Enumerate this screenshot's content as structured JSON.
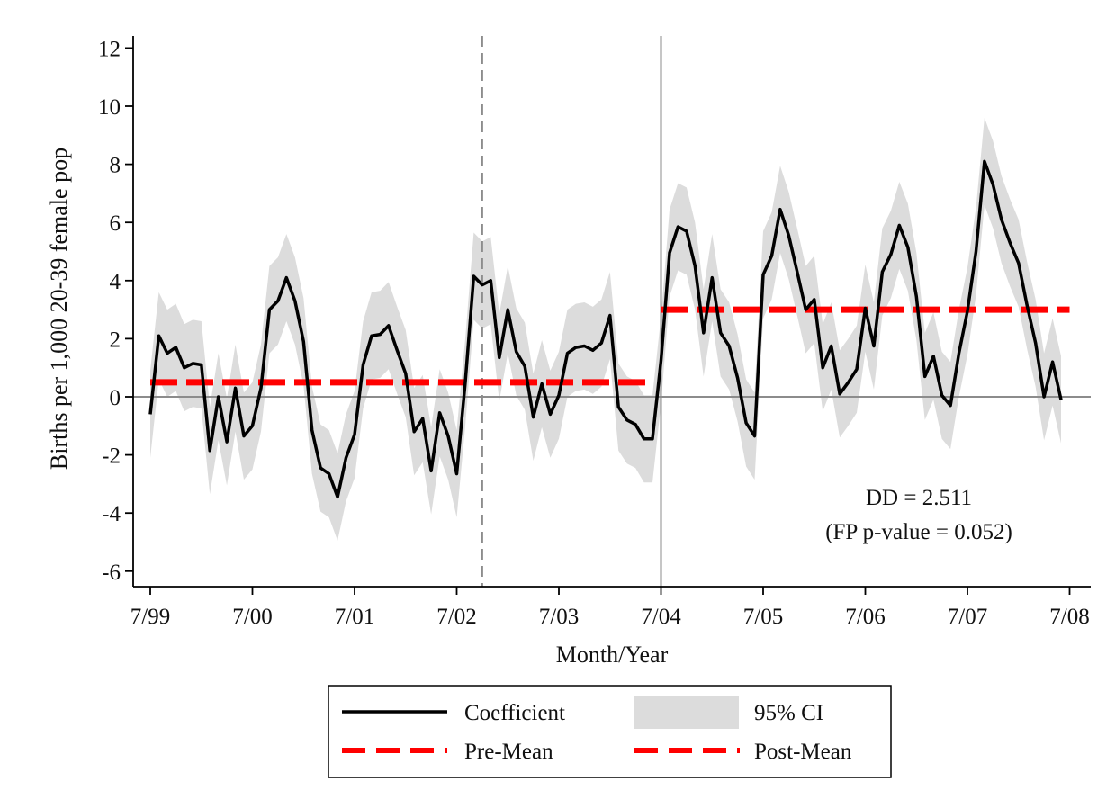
{
  "chart_data": {
    "type": "line",
    "title": "",
    "xlabel": "Month/Year",
    "ylabel": "Births per 1,000 20-39 female pop",
    "ylim": [
      -6.5,
      12.5
    ],
    "yticks": [
      -6,
      -4,
      -2,
      0,
      2,
      4,
      6,
      8,
      10,
      12
    ],
    "xlim": [
      0,
      109
    ],
    "xticks": [
      {
        "pos": 0,
        "label": "7/99"
      },
      {
        "pos": 12,
        "label": "7/00"
      },
      {
        "pos": 24,
        "label": "7/01"
      },
      {
        "pos": 36,
        "label": "7/02"
      },
      {
        "pos": 48,
        "label": "7/03"
      },
      {
        "pos": 60,
        "label": "7/04"
      },
      {
        "pos": 72,
        "label": "7/05"
      },
      {
        "pos": 84,
        "label": "7/06"
      },
      {
        "pos": 96,
        "label": "7/07"
      },
      {
        "pos": 108,
        "label": "7/08"
      }
    ],
    "reference_lines": {
      "zero_line_y": 0,
      "dashed_vertical_x": 39,
      "solid_vertical_x": 60
    },
    "coefficient": [
      -0.6,
      2.1,
      1.5,
      1.7,
      1.0,
      1.15,
      1.1,
      -1.85,
      0.0,
      -1.55,
      0.3,
      -1.35,
      -1.0,
      0.3,
      3.0,
      3.3,
      4.1,
      3.3,
      1.9,
      -1.15,
      -2.45,
      -2.65,
      -3.45,
      -2.1,
      -1.3,
      1.1,
      2.1,
      2.15,
      2.45,
      1.6,
      0.8,
      -1.2,
      -0.75,
      -2.55,
      -0.55,
      -1.35,
      -2.65,
      0.5,
      4.15,
      3.85,
      4.0,
      1.35,
      3.0,
      1.55,
      1.05,
      -0.7,
      0.45,
      -0.6,
      0.05,
      1.5,
      1.7,
      1.75,
      1.6,
      1.85,
      2.8,
      -0.35,
      -0.8,
      -0.95,
      -1.45,
      -1.45,
      1.25,
      4.95,
      5.85,
      5.7,
      4.5,
      2.2,
      4.1,
      2.2,
      1.75,
      0.65,
      -0.9,
      -1.35,
      4.2,
      4.85,
      6.45,
      5.55,
      4.3,
      3.0,
      3.35,
      1.0,
      1.75,
      0.1,
      0.5,
      0.95,
      3.05,
      1.75,
      4.3,
      4.9,
      5.9,
      5.15,
      3.45,
      0.7,
      1.4,
      0.05,
      -0.3,
      1.5,
      2.95,
      5.0,
      8.1,
      7.3,
      6.1,
      5.3,
      4.6,
      3.15,
      1.85,
      0.0,
      1.2,
      -0.1
    ],
    "ci_halfwidth": 1.5,
    "pre_mean": {
      "value": 0.5,
      "x_range": [
        0,
        59
      ]
    },
    "post_mean": {
      "value": 3.0,
      "x_range": [
        60,
        108
      ]
    },
    "annotation": {
      "line1": "DD = 2.511",
      "line2": "(FP p-value = 0.052)"
    },
    "legend": {
      "placement": "bottom",
      "items": [
        {
          "label": "Coefficient",
          "kind": "line",
          "color": "#000000"
        },
        {
          "label": "95% CI",
          "kind": "area",
          "color": "#dcdcdc"
        },
        {
          "label": "Pre-Mean",
          "kind": "dashed",
          "color": "#ff0000"
        },
        {
          "label": "Post-Mean",
          "kind": "dashed",
          "color": "#ff0000"
        }
      ]
    },
    "colors": {
      "line": "#000000",
      "ci_fill": "#dcdcdc",
      "mean": "#ff0000",
      "refline": "#8c8c8c"
    }
  }
}
